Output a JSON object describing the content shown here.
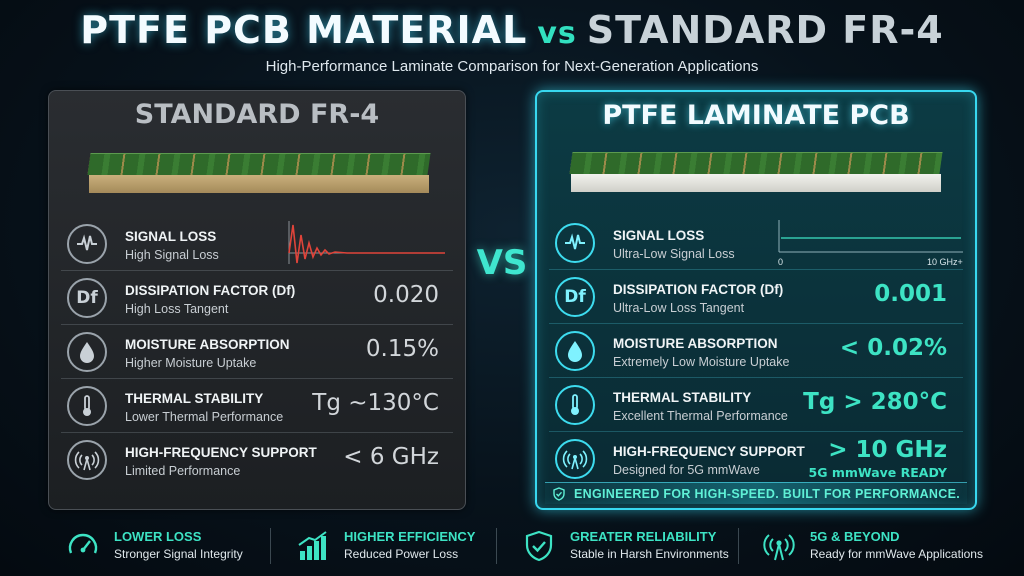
{
  "header": {
    "title_part1": "PTFE PCB MATERIAL",
    "title_vs": "vs",
    "title_part2": "STANDARD FR-4",
    "subtitle": "High-Performance Laminate Comparison for Next-Generation Applications"
  },
  "vs_label": "VS",
  "left_panel": {
    "title": "STANDARD FR-4",
    "rows": [
      {
        "label": "SIGNAL LOSS",
        "sub": "High Signal Loss",
        "value": ""
      },
      {
        "label": "DISSIPATION FACTOR (Df)",
        "sub": "High Loss Tangent",
        "value": "0.020",
        "icon_text": "Df"
      },
      {
        "label": "MOISTURE ABSORPTION",
        "sub": "Higher Moisture Uptake",
        "value": "0.15%"
      },
      {
        "label": "THERMAL STABILITY",
        "sub": "Lower Thermal Performance",
        "value": "Tg ~130°C"
      },
      {
        "label": "HIGH-FREQUENCY SUPPORT",
        "sub": "Limited Performance",
        "value": "< 6 GHz"
      }
    ]
  },
  "right_panel": {
    "title": "PTFE LAMINATE PCB",
    "rows": [
      {
        "label": "SIGNAL LOSS",
        "sub": "Ultra-Low Signal Loss",
        "value": ""
      },
      {
        "label": "DISSIPATION FACTOR (Df)",
        "sub": "Ultra-Low Loss Tangent",
        "value": "0.001",
        "icon_text": "Df"
      },
      {
        "label": "MOISTURE ABSORPTION",
        "sub": "Extremely Low Moisture Uptake",
        "value": "< 0.02%"
      },
      {
        "label": "THERMAL STABILITY",
        "sub": "Excellent Thermal Performance",
        "value": "Tg > 280°C"
      },
      {
        "label": "HIGH-FREQUENCY SUPPORT",
        "sub": "Designed for 5G mmWave",
        "value": "> 10 GHz",
        "value2": "5G mmWave READY"
      }
    ],
    "chart_axis_start": "0",
    "chart_axis_end": "10 GHz+",
    "footer": "ENGINEERED FOR HIGH-SPEED. BUILT FOR PERFORMANCE."
  },
  "bottom": [
    {
      "label": "LOWER LOSS",
      "sub": "Stronger Signal Integrity",
      "icon": "gauge-icon"
    },
    {
      "label": "HIGHER EFFICIENCY",
      "sub": "Reduced Power Loss",
      "icon": "bar-chart-icon"
    },
    {
      "label": "GREATER RELIABILITY",
      "sub": "Stable in Harsh Environments",
      "icon": "shield-check-icon"
    },
    {
      "label": "5G & BEYOND",
      "sub": "Ready for mmWave Applications",
      "icon": "antenna-icon"
    }
  ],
  "colors": {
    "accent": "#3de3c4",
    "cyan_border": "#38d8f0",
    "fr4_red": "#e0443a"
  }
}
